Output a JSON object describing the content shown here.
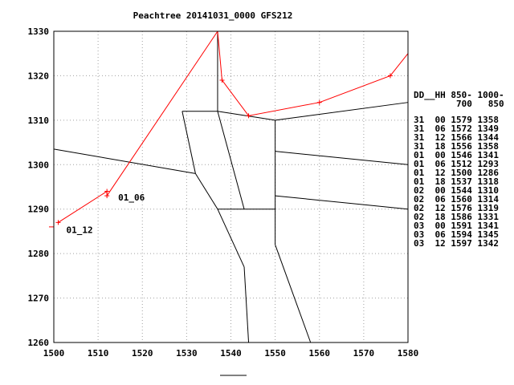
{
  "chart_data": {
    "type": "line",
    "title": "Peachtree 20141031_0000 GFS212",
    "xlim": [
      1500,
      1580
    ],
    "ylim": [
      1260,
      1330
    ],
    "x_ticks": [
      1500,
      1510,
      1520,
      1530,
      1540,
      1550,
      1560,
      1570,
      1580
    ],
    "y_ticks": [
      1260,
      1270,
      1280,
      1290,
      1300,
      1310,
      1320,
      1330
    ],
    "grid": true,
    "series": [
      {
        "color": "#ff0000",
        "x": [
          1501,
          1512,
          1512,
          1537,
          1538,
          1544,
          1560,
          1576,
          1580
        ],
        "y": [
          1287,
          1294,
          1293,
          1330,
          1319,
          1311,
          1314,
          1320,
          1325
        ]
      }
    ],
    "marker_points": [
      {
        "x": 1501,
        "y": 1287
      },
      {
        "x": 1512,
        "y": 1294
      },
      {
        "x": 1512,
        "y": 1293
      },
      {
        "x": 1538,
        "y": 1319
      },
      {
        "x": 1544,
        "y": 1311
      },
      {
        "x": 1560,
        "y": 1314
      },
      {
        "x": 1576,
        "y": 1320
      }
    ],
    "annotations": [
      {
        "text": "01_06",
        "x": 1512,
        "y": 1293
      },
      {
        "text": "01_12",
        "x": 1501,
        "y": 1287
      }
    ],
    "boundaries": [
      [
        [
          1500,
          1303.5
        ],
        [
          1532,
          1298
        ]
      ],
      [
        [
          1532,
          1298
        ],
        [
          1529,
          1312
        ]
      ],
      [
        [
          1529,
          1312
        ],
        [
          1537,
          1312
        ]
      ],
      [
        [
          1537,
          1312
        ],
        [
          1550,
          1310
        ]
      ],
      [
        [
          1537,
          1330
        ],
        [
          1537,
          1312
        ]
      ],
      [
        [
          1537,
          1312
        ],
        [
          1543,
          1290
        ]
      ],
      [
        [
          1550,
          1310
        ],
        [
          1580,
          1314
        ]
      ],
      [
        [
          1550,
          1310
        ],
        [
          1550,
          1282
        ]
      ],
      [
        [
          1550,
          1303
        ],
        [
          1580,
          1300
        ]
      ],
      [
        [
          1550,
          1293
        ],
        [
          1580,
          1290
        ]
      ],
      [
        [
          1537,
          1290
        ],
        [
          1550,
          1290
        ]
      ],
      [
        [
          1532,
          1298
        ],
        [
          1537,
          1290
        ]
      ],
      [
        [
          1537,
          1290
        ],
        [
          1543,
          1277
        ]
      ],
      [
        [
          1543,
          1277
        ],
        [
          1544,
          1260
        ]
      ],
      [
        [
          1550,
          1282
        ],
        [
          1558,
          1260
        ]
      ]
    ],
    "table": {
      "header": [
        "DD__HH 850- 1000-",
        "        700   850"
      ],
      "rows": [
        "31  00 1579 1358",
        "31  06 1572 1349",
        "31  12 1566 1344",
        "31  18 1556 1358",
        "01  00 1546 1341",
        "01  06 1512 1293",
        "01  12 1500 1286",
        "01  18 1537 1318",
        "02  00 1544 1310",
        "02  06 1560 1314",
        "02  12 1576 1319",
        "02  18 1586 1331",
        "03  00 1591 1341",
        "03  06 1594 1345",
        "03  12 1597 1342"
      ]
    }
  }
}
